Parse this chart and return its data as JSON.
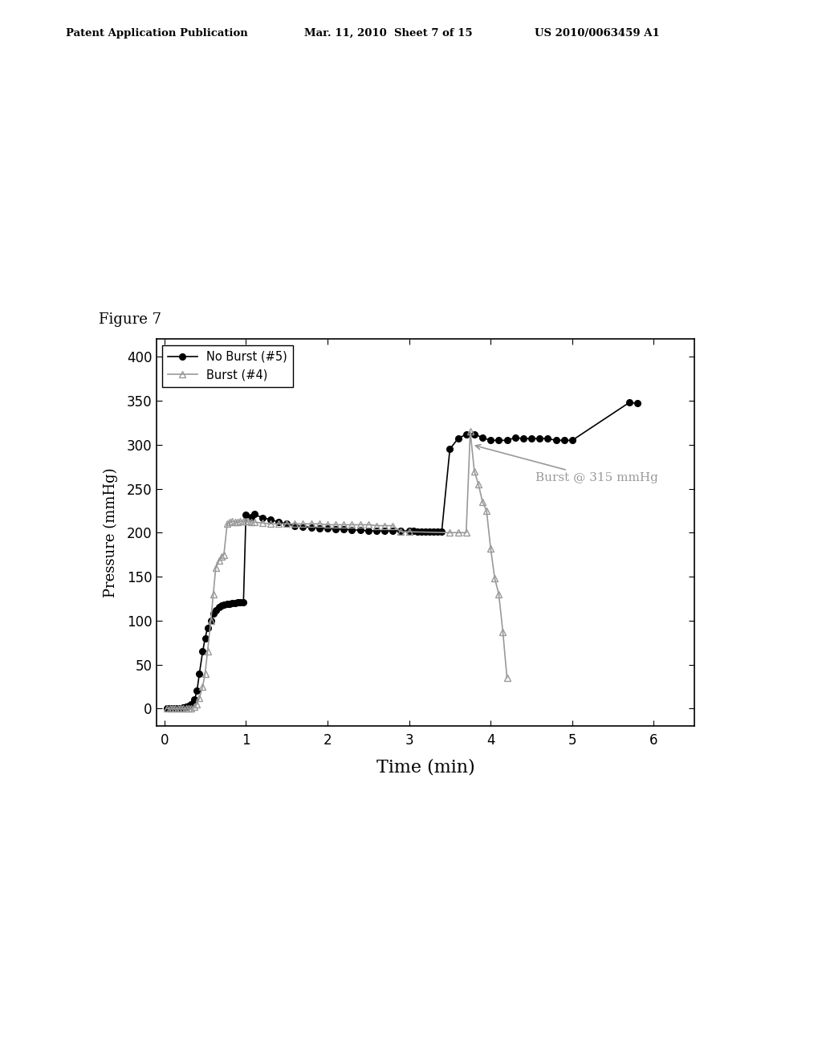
{
  "figure_label": "Figure 7",
  "xlabel": "Time (min)",
  "ylabel": "Pressure (mmHg)",
  "xlim": [
    -0.1,
    6.5
  ],
  "ylim": [
    -20,
    420
  ],
  "xticks": [
    0,
    1,
    2,
    3,
    4,
    5,
    6
  ],
  "yticks": [
    0,
    50,
    100,
    150,
    200,
    250,
    300,
    350,
    400
  ],
  "annotation_text": "Burst @ 315 mmHg",
  "legend_entries": [
    "No Burst (#5)",
    "Burst (#4)"
  ],
  "no_burst_color": "#000000",
  "burst_color": "#999999",
  "header_left": "Patent Application Publication",
  "header_mid": "Mar. 11, 2010  Sheet 7 of 15",
  "header_right": "US 2010/0063459 A1",
  "no_burst_x": [
    0.03,
    0.07,
    0.1,
    0.13,
    0.17,
    0.2,
    0.23,
    0.27,
    0.3,
    0.33,
    0.37,
    0.4,
    0.43,
    0.47,
    0.5,
    0.53,
    0.57,
    0.6,
    0.63,
    0.67,
    0.7,
    0.73,
    0.77,
    0.8,
    0.83,
    0.87,
    0.9,
    0.93,
    0.97,
    1.0,
    1.07,
    1.1,
    1.2,
    1.3,
    1.4,
    1.5,
    1.6,
    1.7,
    1.8,
    1.9,
    2.0,
    2.1,
    2.2,
    2.3,
    2.4,
    2.5,
    2.6,
    2.7,
    2.8,
    2.9,
    3.0,
    3.05,
    3.1,
    3.15,
    3.2,
    3.25,
    3.3,
    3.35,
    3.4,
    3.5,
    3.6,
    3.7,
    3.8,
    3.9,
    4.0,
    4.1,
    4.2,
    4.3,
    4.4,
    4.5,
    4.6,
    4.7,
    4.8,
    4.9,
    5.0,
    5.7,
    5.8
  ],
  "no_burst_y": [
    0,
    0,
    0,
    0,
    0,
    0,
    1,
    2,
    3,
    5,
    10,
    20,
    40,
    65,
    80,
    92,
    100,
    108,
    112,
    115,
    117,
    118,
    119,
    119,
    120,
    120,
    121,
    121,
    121,
    220,
    218,
    221,
    217,
    215,
    212,
    210,
    208,
    207,
    206,
    205,
    205,
    204,
    204,
    203,
    203,
    202,
    202,
    202,
    202,
    202,
    202,
    202,
    201,
    201,
    201,
    201,
    201,
    201,
    201,
    295,
    307,
    312,
    312,
    308,
    305,
    305,
    305,
    308,
    307,
    307,
    307,
    307,
    305,
    305,
    305,
    348,
    347
  ],
  "burst_x": [
    0.03,
    0.07,
    0.1,
    0.13,
    0.17,
    0.2,
    0.23,
    0.27,
    0.3,
    0.33,
    0.37,
    0.4,
    0.43,
    0.47,
    0.5,
    0.53,
    0.57,
    0.6,
    0.63,
    0.67,
    0.7,
    0.73,
    0.77,
    0.8,
    0.83,
    0.87,
    0.9,
    0.93,
    0.97,
    1.0,
    1.03,
    1.07,
    1.1,
    1.2,
    1.3,
    1.4,
    1.5,
    1.6,
    1.7,
    1.8,
    1.9,
    2.0,
    2.1,
    2.2,
    2.3,
    2.4,
    2.5,
    2.6,
    2.7,
    2.8,
    2.9,
    3.0,
    3.5,
    3.6,
    3.7,
    3.75,
    3.8,
    3.85,
    3.9,
    3.95,
    4.0,
    4.05,
    4.1,
    4.15,
    4.2
  ],
  "burst_y": [
    0,
    0,
    0,
    0,
    0,
    0,
    0,
    0,
    0,
    0,
    2,
    5,
    12,
    25,
    40,
    65,
    100,
    130,
    160,
    168,
    173,
    175,
    210,
    212,
    213,
    212,
    212,
    213,
    213,
    213,
    213,
    212,
    212,
    211,
    210,
    210,
    210,
    210,
    210,
    210,
    210,
    209,
    209,
    209,
    209,
    209,
    209,
    208,
    208,
    208,
    201,
    201,
    200,
    200,
    200,
    315,
    270,
    255,
    235,
    225,
    182,
    148,
    130,
    87,
    35
  ]
}
